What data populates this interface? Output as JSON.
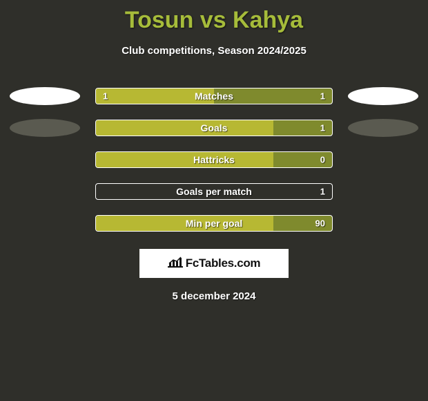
{
  "title": "Tosun vs Kahya",
  "subtitle": "Club competitions, Season 2024/2025",
  "date": "5 december 2024",
  "logo_text": "FcTables.com",
  "colors": {
    "bg": "#2f2f2a",
    "title": "#a6bc3a",
    "bar_outer_bg": "#7f8a2d",
    "bar_inner_bg": "#b7b833",
    "bar_border": "#ffffff",
    "text": "#ffffff",
    "ellipse_white": "#ffffff",
    "ellipse_dark": "#5a5a50"
  },
  "rows": [
    {
      "label": "Matches",
      "left_val": "1",
      "right_val": "1",
      "fill_pct": 50,
      "left_ellipse_color": "#ffffff",
      "right_ellipse_color": "#ffffff"
    },
    {
      "label": "Goals",
      "left_val": "",
      "right_val": "1",
      "fill_pct": 75,
      "left_ellipse_color": "#5a5a50",
      "right_ellipse_color": "#5a5a50"
    },
    {
      "label": "Hattricks",
      "left_val": "",
      "right_val": "0",
      "fill_pct": 75,
      "left_ellipse_color": null,
      "right_ellipse_color": null
    },
    {
      "label": "Goals per match",
      "left_val": "",
      "right_val": "1",
      "fill_pct": 0,
      "left_ellipse_color": null,
      "right_ellipse_color": null,
      "outline_only": true
    },
    {
      "label": "Min per goal",
      "left_val": "",
      "right_val": "90",
      "fill_pct": 75,
      "left_ellipse_color": null,
      "right_ellipse_color": null
    }
  ]
}
